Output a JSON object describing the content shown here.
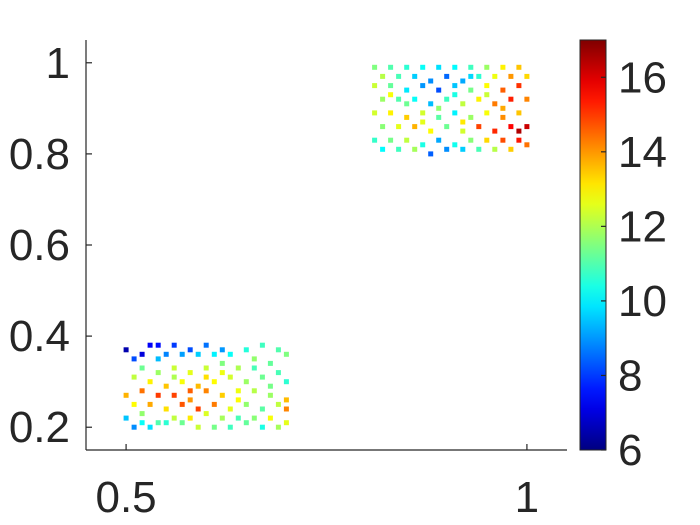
{
  "chart_data": {
    "type": "scatter",
    "title": "",
    "xlabel": "",
    "ylabel": "",
    "xlim": [
      0.45,
      1.05
    ],
    "ylim": [
      0.15,
      1.05
    ],
    "grid": false,
    "legend": "none",
    "x_ticks": [
      0.5,
      1
    ],
    "x_tick_labels": [
      "0.5",
      "1"
    ],
    "y_ticks": [
      0.2,
      0.4,
      0.6,
      0.8,
      1
    ],
    "y_tick_labels": [
      "0.2",
      "0.4",
      "0.6",
      "0.8",
      "1"
    ],
    "colorbar": {
      "colormap": "jet",
      "limits": [
        6,
        17
      ],
      "ticks": [
        6,
        8,
        10,
        12,
        14,
        16
      ],
      "tick_labels": [
        "6",
        "8",
        "10",
        "12",
        "14",
        "16"
      ],
      "colors": [
        "#00008f",
        "#0000ff",
        "#00ffff",
        "#ffff00",
        "#ff0000",
        "#800000"
      ]
    },
    "series": [
      {
        "points": [
          [
            0.5,
            0.37,
            6.5
          ],
          [
            0.52,
            0.36,
            7.0
          ],
          [
            0.53,
            0.38,
            7.3
          ],
          [
            0.54,
            0.38,
            7.5
          ],
          [
            0.56,
            0.38,
            8.0
          ],
          [
            0.58,
            0.37,
            8.2
          ],
          [
            0.6,
            0.38,
            8.6
          ],
          [
            0.62,
            0.37,
            9.0
          ],
          [
            0.51,
            0.35,
            8.2
          ],
          [
            0.55,
            0.36,
            8.8
          ],
          [
            0.57,
            0.36,
            9.1
          ],
          [
            0.59,
            0.36,
            9.6
          ],
          [
            0.61,
            0.36,
            10.0
          ],
          [
            0.63,
            0.36,
            10.2
          ],
          [
            0.65,
            0.37,
            10.5
          ],
          [
            0.67,
            0.38,
            10.8
          ],
          [
            0.69,
            0.37,
            11.0
          ],
          [
            0.7,
            0.36,
            11.5
          ],
          [
            0.68,
            0.34,
            11.2
          ],
          [
            0.66,
            0.35,
            11.7
          ],
          [
            0.64,
            0.33,
            12.0
          ],
          [
            0.6,
            0.33,
            12.3
          ],
          [
            0.58,
            0.32,
            12.6
          ],
          [
            0.56,
            0.33,
            12.3
          ],
          [
            0.54,
            0.32,
            11.8
          ],
          [
            0.52,
            0.33,
            11.3
          ],
          [
            0.51,
            0.31,
            12.2
          ],
          [
            0.53,
            0.3,
            13.0
          ],
          [
            0.55,
            0.29,
            13.5
          ],
          [
            0.57,
            0.3,
            12.8
          ],
          [
            0.59,
            0.29,
            13.6
          ],
          [
            0.61,
            0.3,
            12.9
          ],
          [
            0.63,
            0.31,
            12.4
          ],
          [
            0.65,
            0.3,
            11.8
          ],
          [
            0.67,
            0.31,
            11.3
          ],
          [
            0.69,
            0.32,
            10.9
          ],
          [
            0.7,
            0.3,
            10.6
          ],
          [
            0.68,
            0.29,
            11.4
          ],
          [
            0.66,
            0.28,
            12.1
          ],
          [
            0.64,
            0.28,
            12.7
          ],
          [
            0.62,
            0.27,
            13.4
          ],
          [
            0.6,
            0.28,
            14.2
          ],
          [
            0.58,
            0.28,
            14.6
          ],
          [
            0.56,
            0.27,
            14.9
          ],
          [
            0.54,
            0.27,
            15.0
          ],
          [
            0.52,
            0.28,
            14.4
          ],
          [
            0.5,
            0.27,
            13.7
          ],
          [
            0.51,
            0.25,
            12.9
          ],
          [
            0.53,
            0.25,
            13.8
          ],
          [
            0.55,
            0.24,
            13.2
          ],
          [
            0.57,
            0.25,
            14.7
          ],
          [
            0.59,
            0.24,
            14.9
          ],
          [
            0.61,
            0.25,
            14.3
          ],
          [
            0.63,
            0.24,
            12.6
          ],
          [
            0.65,
            0.25,
            11.7
          ],
          [
            0.67,
            0.24,
            11.1
          ],
          [
            0.69,
            0.25,
            12.2
          ],
          [
            0.7,
            0.26,
            13.6
          ],
          [
            0.7,
            0.24,
            14.2
          ],
          [
            0.68,
            0.22,
            12.8
          ],
          [
            0.66,
            0.22,
            11.6
          ],
          [
            0.64,
            0.22,
            10.9
          ],
          [
            0.62,
            0.22,
            11.9
          ],
          [
            0.6,
            0.23,
            12.5
          ],
          [
            0.58,
            0.22,
            13.1
          ],
          [
            0.56,
            0.22,
            12.2
          ],
          [
            0.54,
            0.21,
            11.0
          ],
          [
            0.52,
            0.21,
            10.2
          ],
          [
            0.5,
            0.22,
            9.5
          ],
          [
            0.51,
            0.2,
            8.9
          ],
          [
            0.53,
            0.2,
            9.8
          ],
          [
            0.55,
            0.21,
            10.6
          ],
          [
            0.57,
            0.21,
            11.3
          ],
          [
            0.59,
            0.2,
            12.3
          ],
          [
            0.61,
            0.2,
            11.4
          ],
          [
            0.63,
            0.2,
            10.8
          ],
          [
            0.65,
            0.21,
            11.2
          ],
          [
            0.67,
            0.2,
            10.4
          ],
          [
            0.69,
            0.2,
            11.9
          ],
          [
            0.7,
            0.21,
            12.6
          ],
          [
            0.62,
            0.34,
            11.5
          ],
          [
            0.56,
            0.31,
            12.0
          ],
          [
            0.6,
            0.31,
            13.2
          ],
          [
            0.66,
            0.33,
            10.9
          ],
          [
            0.52,
            0.23,
            11.7
          ],
          [
            0.64,
            0.26,
            12.9
          ],
          [
            0.58,
            0.26,
            14.0
          ],
          [
            0.54,
            0.35,
            9.4
          ],
          [
            0.68,
            0.27,
            11.8
          ],
          [
            0.62,
            0.32,
            12.7
          ]
        ]
      },
      {
        "points": [
          [
            0.81,
            0.99,
            11.5
          ],
          [
            0.83,
            0.99,
            11.0
          ],
          [
            0.85,
            0.99,
            10.6
          ],
          [
            0.87,
            0.99,
            10.2
          ],
          [
            0.89,
            0.99,
            9.8
          ],
          [
            0.91,
            0.99,
            10.1
          ],
          [
            0.93,
            0.99,
            10.8
          ],
          [
            0.95,
            0.99,
            11.8
          ],
          [
            0.97,
            0.99,
            13.0
          ],
          [
            0.99,
            0.99,
            13.5
          ],
          [
            0.82,
            0.97,
            12.1
          ],
          [
            0.84,
            0.97,
            10.9
          ],
          [
            0.86,
            0.97,
            9.6
          ],
          [
            0.88,
            0.96,
            8.9
          ],
          [
            0.9,
            0.97,
            8.5
          ],
          [
            0.92,
            0.96,
            9.2
          ],
          [
            0.94,
            0.97,
            10.6
          ],
          [
            0.96,
            0.97,
            12.7
          ],
          [
            0.98,
            0.97,
            14.0
          ],
          [
            1.0,
            0.97,
            13.3
          ],
          [
            0.81,
            0.95,
            12.3
          ],
          [
            0.83,
            0.95,
            11.2
          ],
          [
            0.85,
            0.94,
            9.9
          ],
          [
            0.87,
            0.95,
            9.0
          ],
          [
            0.89,
            0.94,
            8.2
          ],
          [
            0.91,
            0.95,
            9.5
          ],
          [
            0.93,
            0.94,
            11.4
          ],
          [
            0.95,
            0.95,
            12.9
          ],
          [
            0.97,
            0.94,
            14.6
          ],
          [
            0.99,
            0.95,
            15.1
          ],
          [
            0.82,
            0.92,
            11.8
          ],
          [
            0.84,
            0.92,
            11.0
          ],
          [
            0.86,
            0.92,
            10.2
          ],
          [
            0.88,
            0.91,
            9.4
          ],
          [
            0.9,
            0.92,
            10.8
          ],
          [
            0.92,
            0.91,
            12.2
          ],
          [
            0.94,
            0.92,
            13.0
          ],
          [
            0.96,
            0.91,
            14.3
          ],
          [
            0.98,
            0.92,
            15.3
          ],
          [
            1.0,
            0.92,
            14.2
          ],
          [
            0.81,
            0.89,
            12.4
          ],
          [
            0.83,
            0.89,
            13.0
          ],
          [
            0.85,
            0.88,
            13.4
          ],
          [
            0.87,
            0.89,
            12.4
          ],
          [
            0.89,
            0.88,
            11.1
          ],
          [
            0.91,
            0.89,
            10.0
          ],
          [
            0.93,
            0.88,
            11.8
          ],
          [
            0.95,
            0.89,
            12.8
          ],
          [
            0.97,
            0.88,
            14.1
          ],
          [
            0.99,
            0.89,
            13.5
          ],
          [
            0.82,
            0.86,
            11.6
          ],
          [
            0.84,
            0.86,
            12.6
          ],
          [
            0.86,
            0.86,
            13.7
          ],
          [
            0.88,
            0.85,
            12.9
          ],
          [
            0.9,
            0.86,
            11.3
          ],
          [
            0.92,
            0.85,
            12.4
          ],
          [
            0.94,
            0.86,
            14.9
          ],
          [
            0.96,
            0.85,
            15.2
          ],
          [
            0.98,
            0.86,
            15.6
          ],
          [
            1.0,
            0.86,
            16.2
          ],
          [
            0.81,
            0.83,
            10.7
          ],
          [
            0.83,
            0.83,
            11.4
          ],
          [
            0.85,
            0.83,
            12.2
          ],
          [
            0.87,
            0.82,
            10.4
          ],
          [
            0.89,
            0.83,
            9.2
          ],
          [
            0.91,
            0.82,
            10.3
          ],
          [
            0.93,
            0.83,
            11.6
          ],
          [
            0.95,
            0.83,
            13.3
          ],
          [
            0.97,
            0.83,
            14.8
          ],
          [
            0.99,
            0.83,
            15.4
          ],
          [
            0.82,
            0.81,
            10.1
          ],
          [
            0.84,
            0.81,
            10.8
          ],
          [
            0.86,
            0.81,
            11.9
          ],
          [
            0.88,
            0.8,
            8.4
          ],
          [
            0.9,
            0.81,
            8.9
          ],
          [
            0.92,
            0.81,
            9.6
          ],
          [
            0.94,
            0.81,
            10.9
          ],
          [
            0.96,
            0.81,
            12.1
          ],
          [
            0.98,
            0.81,
            13.4
          ],
          [
            1.0,
            0.82,
            14.4
          ],
          [
            0.85,
            0.91,
            11.3
          ],
          [
            0.91,
            0.93,
            10.4
          ],
          [
            0.87,
            0.87,
            12.6
          ],
          [
            0.95,
            0.93,
            12.3
          ],
          [
            0.97,
            0.9,
            13.8
          ],
          [
            0.89,
            0.9,
            11.7
          ],
          [
            0.93,
            0.97,
            9.7
          ],
          [
            0.83,
            0.93,
            12.8
          ],
          [
            0.99,
            0.85,
            16.5
          ],
          [
            0.92,
            0.87,
            13.1
          ]
        ]
      }
    ]
  }
}
